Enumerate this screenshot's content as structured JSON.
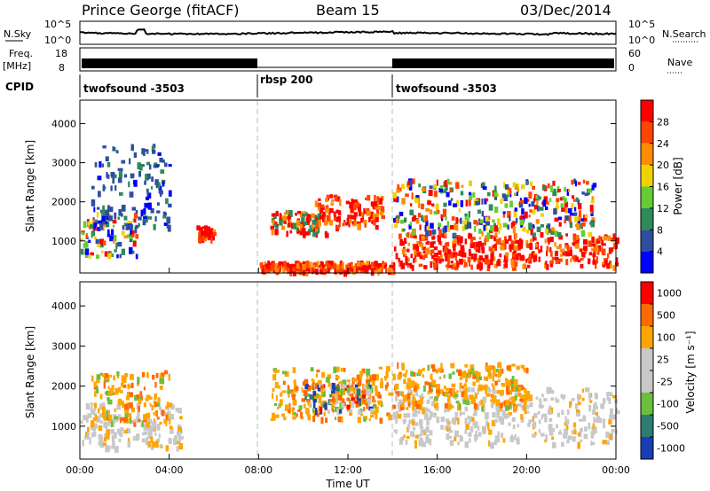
{
  "header": {
    "station": "Prince George (fitACF)",
    "beam": "Beam 15",
    "date": "03/Dec/2014"
  },
  "strip": {
    "nsky_label": "N.Sky",
    "nsearch_label": "N.Search",
    "noise_left_ticks": [
      "10^5",
      "10^0"
    ],
    "noise_right_ticks": [
      "10^5",
      "10^0"
    ],
    "freq_label": "Freq.",
    "freq_unit": "[MHz]",
    "freq_ticks": [
      "18",
      "8"
    ],
    "nave_label": "Nave",
    "nave_ticks": [
      "60",
      "0"
    ],
    "cpid_label": "CPID",
    "cpid_segments": [
      {
        "label": "twofsound -3503",
        "start_hour": 0,
        "end_hour": 8
      },
      {
        "label": "rbsp 200",
        "start_hour": 8,
        "end_hour": 14
      },
      {
        "label": "twofsound -3503",
        "start_hour": 14,
        "end_hour": 24
      }
    ]
  },
  "colors": {
    "power": [
      "#0000ff",
      "#2e4fa0",
      "#2e8b57",
      "#66cc33",
      "#f0d200",
      "#ff8c00",
      "#ff4500",
      "#ff0000"
    ],
    "velocity": [
      "#1a3fb4",
      "#2e7d6f",
      "#6abf3c",
      "#c8c8c8",
      "#c8c8c8",
      "#ffa500",
      "#ff6a00",
      "#ff0000"
    ]
  },
  "chart_data": [
    {
      "type": "heatmap",
      "name": "power",
      "ylabel": "Slant Range [km]",
      "xlabel": "",
      "x_ticks": [
        "00:00",
        "04:00",
        "08:00",
        "12:00",
        "16:00",
        "20:00",
        "00:00"
      ],
      "xlim_hours": [
        0,
        24
      ],
      "ylim": [
        180,
        4600
      ],
      "y_ticks": [
        1000,
        2000,
        3000,
        4000
      ],
      "colorbar_label": "Power [dB]",
      "colorbar_ticks": [
        "28",
        "24",
        "20",
        "16",
        "12",
        "8",
        "4"
      ],
      "bands": [
        {
          "x": [
            0,
            2.5
          ],
          "y": [
            650,
            1800
          ],
          "level": "mixed"
        },
        {
          "x": [
            0.5,
            4
          ],
          "y": [
            1400,
            3500
          ],
          "level": "low"
        },
        {
          "x": [
            5.2,
            6
          ],
          "y": [
            1050,
            1400
          ],
          "level": "high"
        },
        {
          "x": [
            8,
            14
          ],
          "y": [
            250,
            500
          ],
          "level": "high"
        },
        {
          "x": [
            8.5,
            11
          ],
          "y": [
            1200,
            1800
          ],
          "level": "mid"
        },
        {
          "x": [
            10.5,
            13.5
          ],
          "y": [
            1400,
            2200
          ],
          "level": "high"
        },
        {
          "x": [
            14,
            24
          ],
          "y": [
            380,
            1200
          ],
          "level": "high"
        },
        {
          "x": [
            14,
            23
          ],
          "y": [
            1200,
            2600
          ],
          "level": "mixed"
        }
      ]
    },
    {
      "type": "heatmap",
      "name": "velocity",
      "ylabel": "Slant Range [km]",
      "xlabel": "Time UT",
      "x_ticks": [
        "00:00",
        "04:00",
        "08:00",
        "12:00",
        "16:00",
        "20:00",
        "00:00"
      ],
      "xlim_hours": [
        0,
        24
      ],
      "ylim": [
        180,
        4600
      ],
      "y_ticks": [
        1000,
        2000,
        3000,
        4000
      ],
      "colorbar_label": "Velocity [m s⁻¹]",
      "colorbar_ticks": [
        "1000",
        "500",
        "100",
        "25",
        "-25",
        "-100",
        "-500",
        "-1000"
      ],
      "bands": [
        {
          "x": [
            0,
            4.5
          ],
          "y": [
            500,
            1600
          ],
          "level": "ground"
        },
        {
          "x": [
            0.5,
            4
          ],
          "y": [
            1100,
            2400
          ],
          "level": "orange"
        },
        {
          "x": [
            8.5,
            14
          ],
          "y": [
            1200,
            2500
          ],
          "level": "orange"
        },
        {
          "x": [
            10,
            13
          ],
          "y": [
            1400,
            2100
          ],
          "level": "mixed"
        },
        {
          "x": [
            14,
            24
          ],
          "y": [
            600,
            2000
          ],
          "level": "ground"
        },
        {
          "x": [
            14,
            20
          ],
          "y": [
            1500,
            2600
          ],
          "level": "orange"
        }
      ]
    }
  ]
}
